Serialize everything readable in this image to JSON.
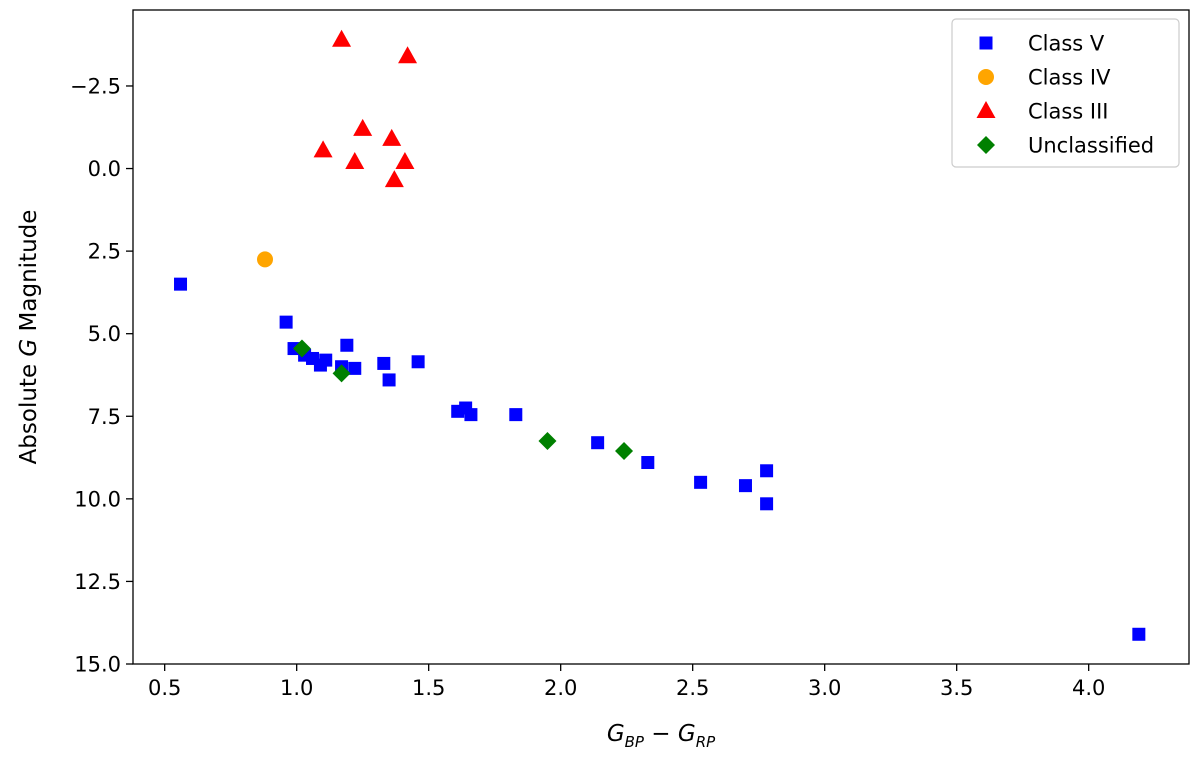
{
  "chart_data": {
    "type": "scatter",
    "title": "",
    "xlabel": {
      "main1": "G",
      "sub1": "BP",
      "op": " − ",
      "main2": "G",
      "sub2": "RP"
    },
    "ylabel": {
      "pre": "Absolute ",
      "italic": "G",
      "post": " Magnitude"
    },
    "xlim": [
      0.38,
      4.38
    ],
    "ylim": [
      15.0,
      -4.8
    ],
    "y_inverted": true,
    "grid": false,
    "legend_position": "top-right",
    "x_ticks": [
      0.5,
      1.0,
      1.5,
      2.0,
      2.5,
      3.0,
      3.5,
      4.0
    ],
    "x_tick_labels": [
      "0.5",
      "1.0",
      "1.5",
      "2.0",
      "2.5",
      "3.0",
      "3.5",
      "4.0"
    ],
    "y_ticks": [
      -2.5,
      0.0,
      2.5,
      5.0,
      7.5,
      10.0,
      12.5,
      15.0
    ],
    "y_tick_labels": [
      "−2.5",
      "0.0",
      "2.5",
      "5.0",
      "7.5",
      "10.0",
      "12.5",
      "15.0"
    ],
    "series": [
      {
        "name": "Class V",
        "marker": "square",
        "color": "#0000ff",
        "points": [
          [
            0.56,
            3.5
          ],
          [
            0.96,
            4.65
          ],
          [
            0.99,
            5.45
          ],
          [
            1.03,
            5.65
          ],
          [
            1.06,
            5.75
          ],
          [
            1.09,
            5.95
          ],
          [
            1.11,
            5.8
          ],
          [
            1.17,
            6.0
          ],
          [
            1.19,
            5.35
          ],
          [
            1.22,
            6.05
          ],
          [
            1.33,
            5.9
          ],
          [
            1.35,
            6.4
          ],
          [
            1.46,
            5.85
          ],
          [
            1.61,
            7.35
          ],
          [
            1.64,
            7.25
          ],
          [
            1.66,
            7.45
          ],
          [
            1.83,
            7.45
          ],
          [
            2.14,
            8.3
          ],
          [
            2.33,
            8.9
          ],
          [
            2.53,
            9.5
          ],
          [
            2.7,
            9.6
          ],
          [
            2.78,
            9.15
          ],
          [
            2.78,
            10.15
          ],
          [
            4.19,
            14.1
          ]
        ]
      },
      {
        "name": "Class IV",
        "marker": "circle",
        "color": "#ffa500",
        "points": [
          [
            0.88,
            2.75
          ]
        ]
      },
      {
        "name": "Class III",
        "marker": "triangle",
        "color": "#ff0000",
        "points": [
          [
            1.1,
            -0.55
          ],
          [
            1.17,
            -3.9
          ],
          [
            1.22,
            -0.2
          ],
          [
            1.25,
            -1.2
          ],
          [
            1.36,
            -0.9
          ],
          [
            1.37,
            0.35
          ],
          [
            1.41,
            -0.2
          ],
          [
            1.42,
            -3.4
          ]
        ]
      },
      {
        "name": "Unclassified",
        "marker": "diamond",
        "color": "#008000",
        "points": [
          [
            1.02,
            5.45
          ],
          [
            1.17,
            6.2
          ],
          [
            1.95,
            8.25
          ],
          [
            2.24,
            8.55
          ]
        ]
      }
    ]
  }
}
